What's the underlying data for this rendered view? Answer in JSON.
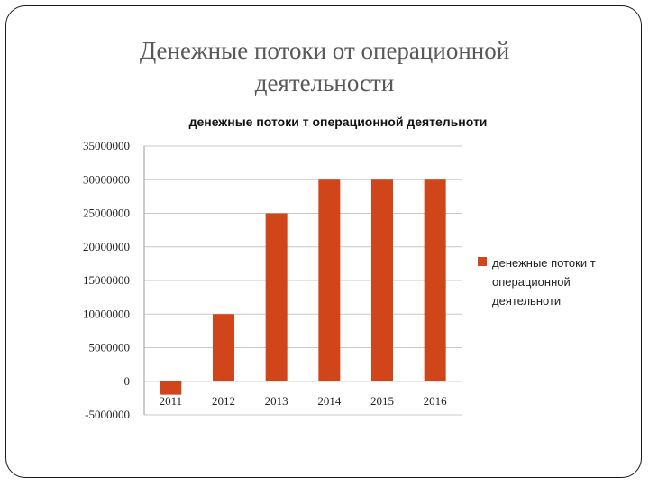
{
  "slide": {
    "title": "Денежные потоки от операционной деятельности"
  },
  "chart_data": {
    "type": "bar",
    "title": "денежные потоки т операционной деятельноти",
    "categories": [
      "2011",
      "2012",
      "2013",
      "2014",
      "2015",
      "2016"
    ],
    "series": [
      {
        "name": "денежные потоки т операционной деятельноти",
        "values": [
          -2000000,
          10000000,
          25000000,
          30000000,
          30000000,
          30000000
        ],
        "color": "#d0461a"
      }
    ],
    "ylim": [
      -5000000,
      35000000
    ],
    "yticks": [
      "35000000",
      "30000000",
      "25000000",
      "20000000",
      "15000000",
      "10000000",
      "5000000",
      "0",
      "-5000000"
    ],
    "ytick_values": [
      35000000,
      30000000,
      25000000,
      20000000,
      15000000,
      10000000,
      5000000,
      0,
      -5000000
    ],
    "grid": true,
    "legend_position": "right",
    "legend_lines": [
      "денежные потоки т",
      "операционной",
      "деятельноти"
    ]
  }
}
